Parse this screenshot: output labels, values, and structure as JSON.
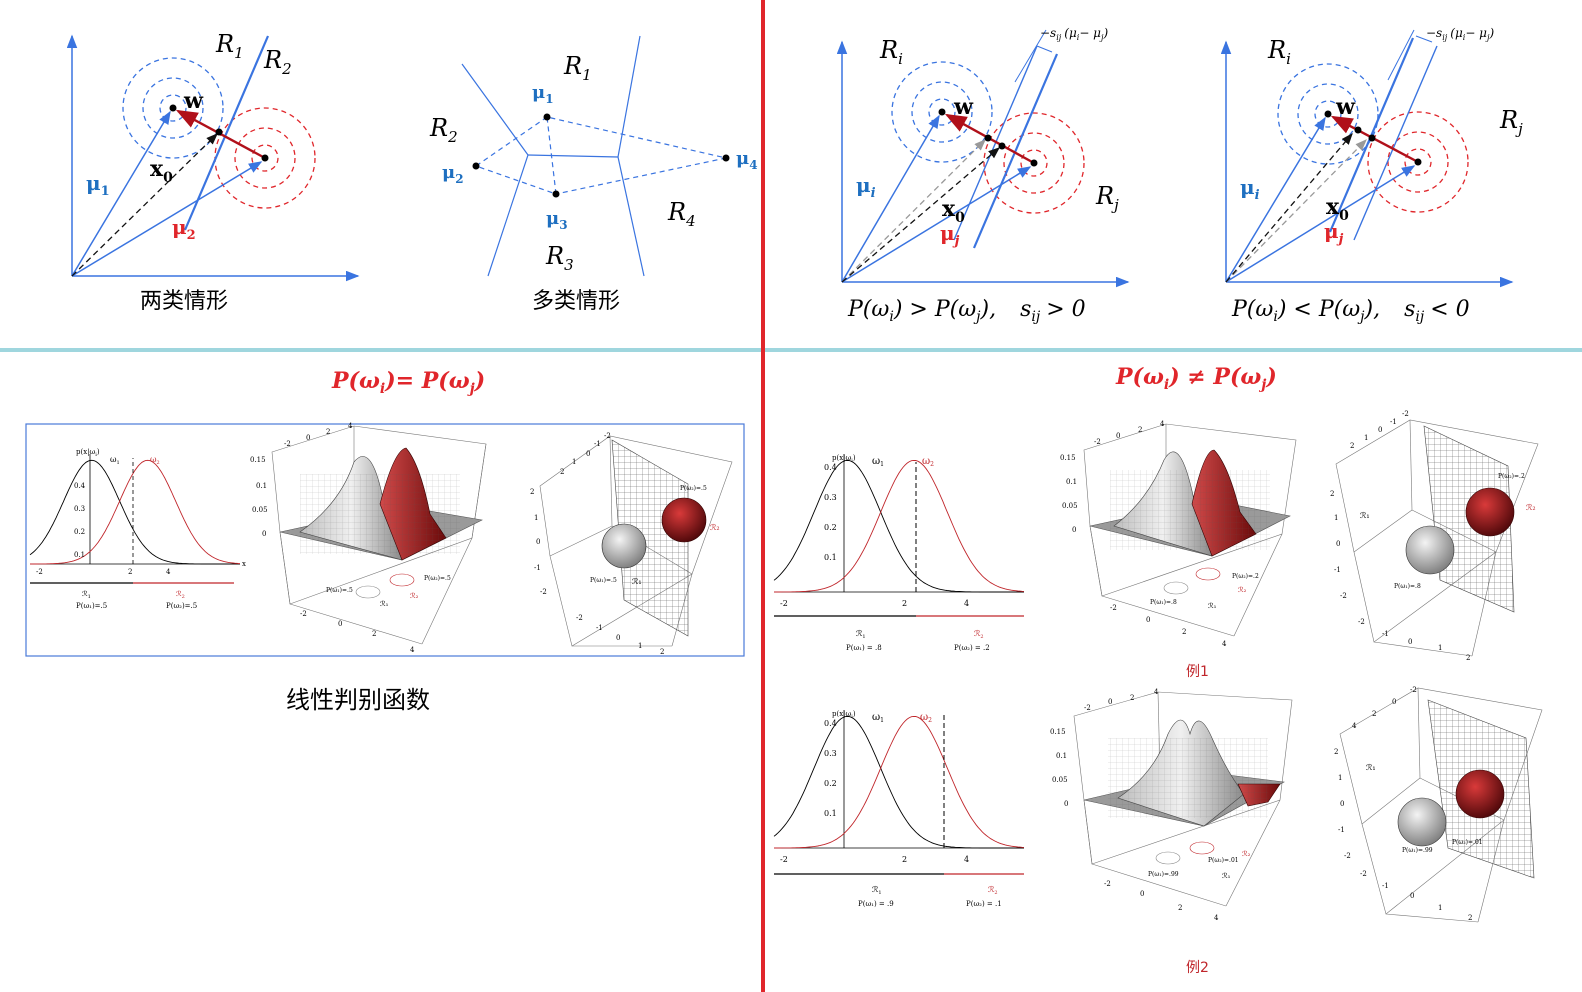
{
  "colors": {
    "blue": "#3a74e0",
    "red": "#e0262b",
    "darkred": "#b0101a",
    "cyan_divider": "#9fd6de",
    "red_divider": "#e0262b",
    "label_blue": "#1e6fc0",
    "frame_blue": "#4a7ad8"
  },
  "top_left": {
    "two_class": {
      "R1": "R",
      "R1_sub": "1",
      "R2": "R",
      "R2_sub": "2",
      "w": "w",
      "x0": "x",
      "x0_sub": "0",
      "mu1": "μ",
      "mu1_sub": "1",
      "mu2": "μ",
      "mu2_sub": "2",
      "caption": "两类情形"
    },
    "multi_class": {
      "R1": "R",
      "R1_sub": "1",
      "R2": "R",
      "R2_sub": "2",
      "R3": "R",
      "R3_sub": "3",
      "R4": "R",
      "R4_sub": "4",
      "mu1": "μ",
      "mu1_sub": "1",
      "mu2": "μ",
      "mu2_sub": "2",
      "mu3": "μ",
      "mu3_sub": "3",
      "mu4": "μ",
      "mu4_sub": "4",
      "caption": "多类情形"
    }
  },
  "top_right": {
    "left": {
      "Ri": "R",
      "Ri_sub": "i",
      "Rj": "R",
      "Rj_sub": "j",
      "w": "w",
      "x0": "x",
      "x0_sub": "0",
      "mui": "μ",
      "mui_sub": "i",
      "muj": "μ",
      "muj_sub": "j",
      "shift": "−s",
      "shift_sub": "ij",
      "shift_tail": "(μ",
      "shift_i": "i",
      "shift_mid": "− μ",
      "shift_j": "j",
      "shift_close": ")",
      "cond_a": "P(ω",
      "cond_i": "i",
      "cond_op": ") > P(ω",
      "cond_j": "j",
      "cond_b": "),",
      "cond_s": "s",
      "cond_s_sub": "ij",
      "cond_s_op": "> 0"
    },
    "right": {
      "Ri": "R",
      "Ri_sub": "i",
      "Rj": "R",
      "Rj_sub": "j",
      "w": "w",
      "x0": "x",
      "x0_sub": "0",
      "mui": "μ",
      "mui_sub": "i",
      "muj": "μ",
      "muj_sub": "j",
      "shift": "−s",
      "shift_sub": "ij",
      "shift_tail": "(μ",
      "shift_i": "i",
      "shift_mid": "− μ",
      "shift_j": "j",
      "shift_close": ")",
      "cond_a": "P(ω",
      "cond_i": "i",
      "cond_op": ") < P(ω",
      "cond_j": "j",
      "cond_b": "),",
      "cond_s": "s",
      "cond_s_sub": "ij",
      "cond_s_op": "< 0"
    }
  },
  "bottom_left": {
    "title_a": "P(ω",
    "title_i": "i",
    "title_eq": ")= P(ω",
    "title_j": "j",
    "title_close": ")",
    "caption": "线性判别函数",
    "plot1": {
      "ylabel": "p(x|ω",
      "ylabel_i": "i",
      "ylabel_close": ")",
      "w1": "ω",
      "w1_sub": "1",
      "w2": "ω",
      "w2_sub": "2",
      "yticks": [
        "0.4",
        "0.3",
        "0.2",
        "0.1"
      ],
      "xticks": [
        "-2",
        "2",
        "4"
      ],
      "xvar": "x",
      "R1": "ℛ",
      "R1_sub": "1",
      "R2": "ℛ",
      "R2_sub": "2",
      "P1": "P(ω₁)=.5",
      "P2": "P(ω₂)=.5"
    },
    "plot2": {
      "zticks": [
        "0.15",
        "0.1",
        "0.05",
        "0"
      ],
      "top_ticks": [
        "-2",
        "0",
        "2",
        "4"
      ],
      "bottom_ticks": [
        "-2",
        "0",
        "2",
        "4"
      ],
      "P1": "P(ω₁)=.5",
      "P2": "P(ω₂)=.5",
      "R1": "ℛ₁",
      "R2": "ℛ₂"
    },
    "plot3": {
      "left_ticks": [
        "2",
        "1",
        "0",
        "-1",
        "-2"
      ],
      "top_ticks": [
        "2",
        "1",
        "0",
        "-1",
        "-2"
      ],
      "bottom_ticks": [
        "-2",
        "-1",
        "0",
        "1",
        "2"
      ],
      "P1": "P(ω₁)=.5",
      "P2": "P(ω₂)=.5",
      "R1": "ℛ₁",
      "R2": "ℛ₂"
    }
  },
  "bottom_right": {
    "title_a": "P(ω",
    "title_i": "i",
    "title_neq": ") ≠ P(ω",
    "title_j": "j",
    "title_close": ")",
    "ex1": {
      "label": "例1",
      "plot1": {
        "ylabel": "p(x|ω",
        "ylabel_i": "i",
        "ylabel_close": ")",
        "w1": "ω",
        "w1_sub": "1",
        "w2": "ω",
        "w2_sub": "2",
        "yticks": [
          "0.4",
          "0.3",
          "0.2",
          "0.1"
        ],
        "xticks": [
          "-2",
          "2",
          "4"
        ],
        "R1": "ℛ",
        "R1_sub": "1",
        "R2": "ℛ",
        "R2_sub": "2",
        "P1": "P(ω₁) = .8",
        "P2": "P(ω₂) = .2"
      },
      "plot2": {
        "zticks": [
          "0.15",
          "0.1",
          "0.05",
          "0"
        ],
        "top_ticks": [
          "-2",
          "0",
          "2",
          "4"
        ],
        "bottom_ticks": [
          "-2",
          "0",
          "2",
          "4"
        ],
        "P1": "P(ω₁)=.8",
        "P2": "P(ω₂)=.2",
        "R1": "ℛ₁",
        "R2": "ℛ₂"
      },
      "plot3": {
        "left_ticks": [
          "2",
          "1",
          "0",
          "-1",
          "-2"
        ],
        "top_ticks": [
          "2",
          "1",
          "0",
          "-1",
          "-2"
        ],
        "bottom_ticks": [
          "-2",
          "-1",
          "0",
          "1",
          "2"
        ],
        "P1": "P(ω₁)=.8",
        "P2": "P(ω₂)=.2",
        "R1": "ℛ₁",
        "R2": "ℛ₂"
      }
    },
    "ex2": {
      "label": "例2",
      "plot1": {
        "ylabel": "p(x|ω",
        "ylabel_i": "i",
        "ylabel_close": ")",
        "w1": "ω",
        "w1_sub": "1",
        "w2": "ω",
        "w2_sub": "2",
        "yticks": [
          "0.4",
          "0.3",
          "0.2",
          "0.1"
        ],
        "xticks": [
          "-2",
          "2",
          "4"
        ],
        "R1": "ℛ",
        "R1_sub": "1",
        "R2": "ℛ",
        "R2_sub": "2",
        "P1": "P(ω₁) = .9",
        "P2": "P(ω₂) = .1"
      },
      "plot2": {
        "zticks": [
          "0.15",
          "0.1",
          "0.05",
          "0"
        ],
        "top_ticks": [
          "-2",
          "0",
          "2",
          "4"
        ],
        "bottom_ticks": [
          "-2",
          "0",
          "2",
          "4"
        ],
        "P1": "P(ω₁)=.99",
        "P2": "P(ω₂)=.01",
        "R1": "ℛ₁",
        "R2": "ℛ₂"
      },
      "plot3": {
        "left_ticks": [
          "2",
          "1",
          "0",
          "-1",
          "-2"
        ],
        "top_ticks": [
          "4",
          "2",
          "0",
          "-2"
        ],
        "bottom_ticks": [
          "-2",
          "-1",
          "0",
          "1",
          "2"
        ],
        "P1": "P(ω₁)=.99",
        "P2": "P(ω₂)=.01",
        "R1": "ℛ₁"
      }
    }
  }
}
